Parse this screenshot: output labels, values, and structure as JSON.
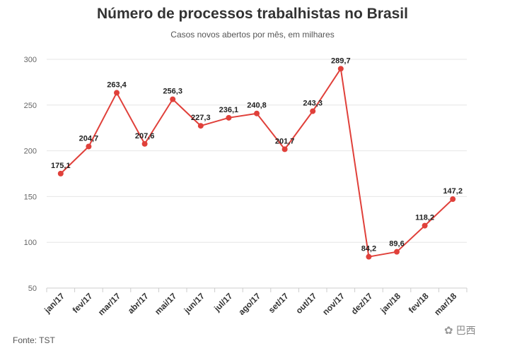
{
  "title": "Número de processos trabalhistas no Brasil",
  "subtitle": "Casos novos abertos por mês, em milhares",
  "source": "Fonte: TST",
  "watermark": "巴西",
  "watermark_icon": "wechat-icon",
  "colors": {
    "line": "#e0403a",
    "grid": "#e6e6e6",
    "axis": "#cccccc"
  },
  "chart_data": {
    "type": "line",
    "title": "Número de processos trabalhistas no Brasil",
    "subtitle": "Casos novos abertos por mês, em milhares",
    "xlabel": "",
    "ylabel": "",
    "ylim": [
      50,
      300
    ],
    "yticks": [
      50,
      100,
      150,
      200,
      250,
      300
    ],
    "categories": [
      "jan/17",
      "fev/17",
      "mar/17",
      "abr/17",
      "mai/17",
      "jun/17",
      "jul/17",
      "ago/17",
      "set/17",
      "out/17",
      "nov/17",
      "dez/17",
      "jan/18",
      "fev/18",
      "mar/18"
    ],
    "values": [
      175.1,
      204.7,
      263.4,
      207.6,
      256.3,
      227.3,
      236.1,
      240.8,
      201.7,
      243.3,
      289.7,
      84.2,
      89.6,
      118.2,
      147.2
    ],
    "labels": [
      "175,1",
      "204,7",
      "263,4",
      "207,6",
      "256,3",
      "227,3",
      "236,1",
      "240,8",
      "201,7",
      "243,3",
      "289,7",
      "84,2",
      "89,6",
      "118,2",
      "147,2"
    ],
    "grid": true,
    "legend": "none"
  }
}
